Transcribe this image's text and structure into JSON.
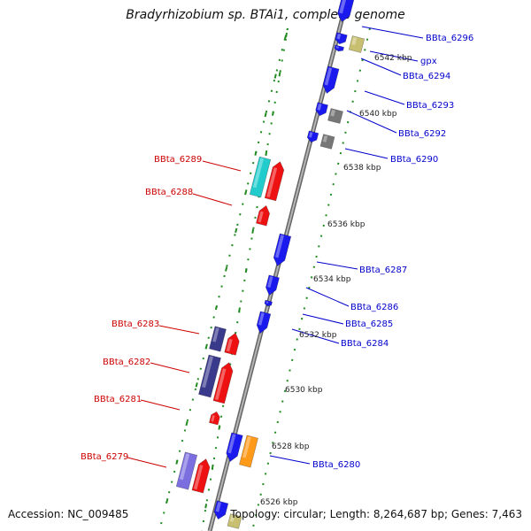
{
  "title": "Bradyrhizobium sp. BTAi1, complete genome",
  "footer": {
    "accession": "Accession: NC_009485",
    "topology": "Topology: circular; Length: 8,264,687 bp; Genes: 7,463"
  },
  "colors": {
    "forward_label": "#0000cc",
    "reverse_label": "#cc0000",
    "backbone": "#888888",
    "ticks": "#228b22",
    "blue": "#1a1aee",
    "red": "#ee1111",
    "navy": "#3a3a8c",
    "periwinkle": "#7b6fe0",
    "teal": "#22cccc",
    "orange": "#ff9a1a",
    "khaki": "#c8c070",
    "gray": "#777777"
  },
  "scale_labels": [
    "6542 kbp",
    "6540 kbp",
    "6538 kbp",
    "6536 kbp",
    "6534 kbp",
    "6532 kbp",
    "6530 kbp",
    "6528 kbp",
    "6526 kbp"
  ],
  "forward_genes": [
    "BBta_6296",
    "gpx",
    "BBta_6294",
    "BBta_6293",
    "BBta_6292",
    "BBta_6290",
    "BBta_6287",
    "BBta_6286",
    "BBta_6285",
    "BBta_6284",
    "BBta_6280"
  ],
  "reverse_genes": [
    "BBta_6289",
    "BBta_6288",
    "BBta_6283",
    "BBta_6282",
    "BBta_6281",
    "BBta_6279"
  ]
}
